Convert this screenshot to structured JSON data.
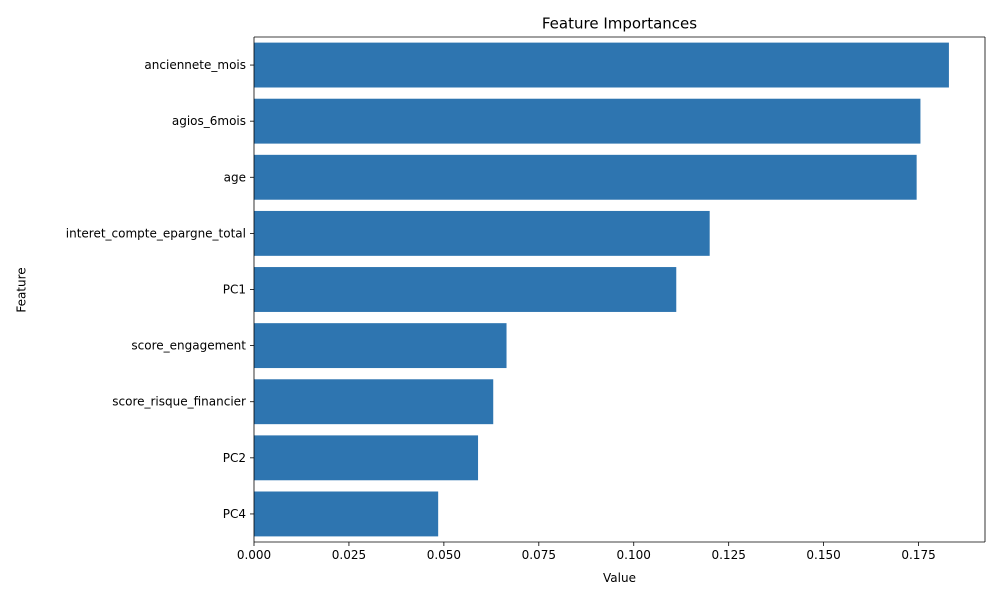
{
  "chart_data": {
    "type": "bar",
    "orientation": "horizontal",
    "title": "Feature Importances",
    "xlabel": "Value",
    "ylabel": "Feature",
    "categories": [
      "anciennete_mois",
      "agios_6mois",
      "age",
      "interet_compte_epargne_total",
      "PC1",
      "score_engagement",
      "score_risque_financier",
      "PC2",
      "PC4"
    ],
    "values": [
      0.183,
      0.1755,
      0.1745,
      0.12,
      0.1112,
      0.0665,
      0.063,
      0.059,
      0.0485
    ],
    "xlim": [
      0,
      0.1925
    ],
    "xticks": [
      0.0,
      0.025,
      0.05,
      0.075,
      0.1,
      0.125,
      0.15,
      0.175
    ],
    "xtick_labels": [
      "0.000",
      "0.025",
      "0.050",
      "0.075",
      "0.100",
      "0.125",
      "0.150",
      "0.175"
    ],
    "grid": false,
    "bar_color": "#2e75b0"
  }
}
